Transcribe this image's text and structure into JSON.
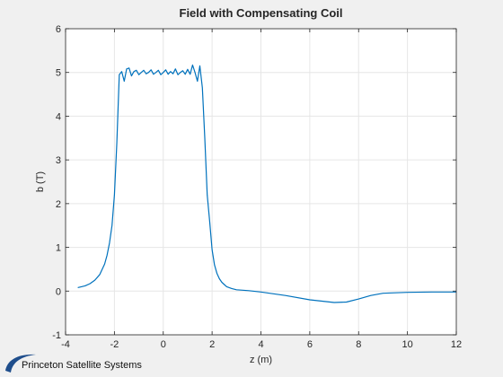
{
  "colors": {
    "line": "#0072bd",
    "plot_background": "#ffffff",
    "figure_background": "#f0f0f0",
    "grid": "#e6e6e6",
    "axis": "#262626",
    "logo": "#1f4e8c"
  },
  "logo": {
    "text": "Princeton Satellite Systems",
    "icon": "swoosh-logo-icon"
  },
  "chart_data": {
    "type": "line",
    "title": "Field with Compensating Coil",
    "xlabel": "z (m)",
    "ylabel": "b (T)",
    "xlim": [
      -4,
      12
    ],
    "ylim": [
      -1,
      6
    ],
    "xticks": [
      -4,
      -2,
      0,
      2,
      4,
      6,
      8,
      10,
      12
    ],
    "yticks": [
      -1,
      0,
      1,
      2,
      3,
      4,
      5,
      6
    ],
    "grid": true,
    "series": [
      {
        "x": [
          -3.5,
          -3.2,
          -3.0,
          -2.8,
          -2.6,
          -2.4,
          -2.3,
          -2.2,
          -2.1,
          -2.0,
          -1.9,
          -1.8,
          -1.7,
          -1.6,
          -1.5,
          -1.4,
          -1.3,
          -1.2,
          -1.1,
          -1.0,
          -0.9,
          -0.8,
          -0.7,
          -0.6,
          -0.5,
          -0.4,
          -0.3,
          -0.2,
          -0.1,
          0.0,
          0.1,
          0.2,
          0.3,
          0.4,
          0.5,
          0.6,
          0.7,
          0.8,
          0.9,
          1.0,
          1.1,
          1.2,
          1.3,
          1.4,
          1.5,
          1.6,
          1.7,
          1.8,
          1.9,
          2.0,
          2.1,
          2.2,
          2.3,
          2.4,
          2.5,
          2.6,
          2.8,
          3.0,
          3.5,
          4.0,
          5.0,
          6.0,
          7.0,
          7.5,
          8.0,
          8.5,
          9.0,
          10.0,
          11.0,
          12.0
        ],
        "y": [
          0.08,
          0.12,
          0.17,
          0.25,
          0.38,
          0.62,
          0.82,
          1.1,
          1.5,
          2.2,
          3.4,
          4.95,
          5.02,
          4.8,
          5.08,
          5.1,
          4.92,
          5.02,
          5.05,
          4.95,
          5.0,
          5.05,
          4.97,
          5.0,
          5.06,
          4.96,
          5.0,
          5.05,
          4.95,
          5.0,
          5.06,
          4.96,
          5.02,
          4.97,
          5.08,
          4.95,
          5.0,
          5.04,
          4.96,
          5.07,
          4.96,
          5.17,
          5.0,
          4.8,
          5.15,
          4.65,
          3.5,
          2.2,
          1.6,
          0.95,
          0.6,
          0.4,
          0.28,
          0.2,
          0.15,
          0.1,
          0.06,
          0.03,
          0.01,
          -0.02,
          -0.1,
          -0.2,
          -0.26,
          -0.25,
          -0.18,
          -0.1,
          -0.05,
          -0.03,
          -0.02,
          -0.02
        ]
      }
    ]
  }
}
